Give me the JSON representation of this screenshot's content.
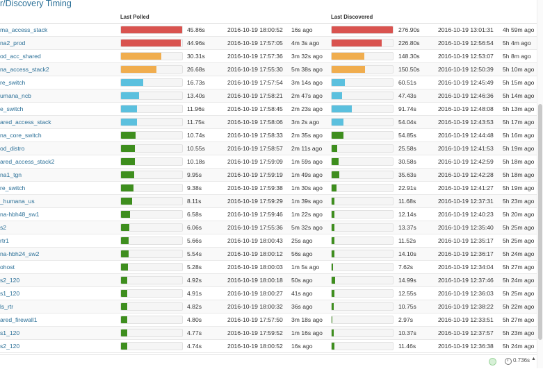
{
  "title": "r/Discovery Timing",
  "headers": {
    "last_polled": "Last Polled",
    "last_discovered": "Last Discovered"
  },
  "footer": {
    "timer": "0.736s",
    "timer_caret": "▲"
  },
  "colors": {
    "red": "#d9534f",
    "orange": "#f0ad4e",
    "blue": "#5bc0de",
    "green": "#3e8e1e"
  },
  "rows": [
    {
      "name": "ma_access_stack",
      "poll_value": "45.86s",
      "poll_pct": 1.0,
      "poll_color": "red",
      "poll_date": "2016-10-19 18:00:52",
      "poll_ago": "16s ago",
      "disc_value": "276.90s",
      "disc_pct": 1.0,
      "disc_color": "red",
      "disc_date": "2016-10-19 13:01:31",
      "disc_ago": "4h 59m ago"
    },
    {
      "name": "na2_prod",
      "poll_value": "44.96s",
      "poll_pct": 0.98,
      "poll_color": "red",
      "poll_date": "2016-10-19 17:57:05",
      "poll_ago": "4m 3s ago",
      "disc_value": "226.80s",
      "disc_pct": 0.82,
      "disc_color": "red",
      "disc_date": "2016-10-19 12:56:54",
      "disc_ago": "5h 4m ago"
    },
    {
      "name": "od_acc_shared",
      "poll_value": "30.31s",
      "poll_pct": 0.66,
      "poll_color": "orange",
      "poll_date": "2016-10-19 17:57:36",
      "poll_ago": "3m 32s ago",
      "disc_value": "148.30s",
      "disc_pct": 0.535,
      "disc_color": "orange",
      "disc_date": "2016-10-19 12:53:07",
      "disc_ago": "5h 8m ago"
    },
    {
      "name": "na_access_stack2",
      "poll_value": "26.68s",
      "poll_pct": 0.58,
      "poll_color": "orange",
      "poll_date": "2016-10-19 17:55:30",
      "poll_ago": "5m 38s ago",
      "disc_value": "150.50s",
      "disc_pct": 0.543,
      "disc_color": "orange",
      "disc_date": "2016-10-19 12:50:39",
      "disc_ago": "5h 10m ago"
    },
    {
      "name": "re_switch",
      "poll_value": "16.73s",
      "poll_pct": 0.365,
      "poll_color": "blue",
      "poll_date": "2016-10-19 17:57:54",
      "poll_ago": "3m 14s ago",
      "disc_value": "60.51s",
      "disc_pct": 0.219,
      "disc_color": "blue",
      "disc_date": "2016-10-19 12:45:49",
      "disc_ago": "5h 15m ago"
    },
    {
      "name": "umana_ncb",
      "poll_value": "13.40s",
      "poll_pct": 0.292,
      "poll_color": "blue",
      "poll_date": "2016-10-19 17:58:21",
      "poll_ago": "2m 47s ago",
      "disc_value": "47.43s",
      "disc_pct": 0.171,
      "disc_color": "blue",
      "disc_date": "2016-10-19 12:46:36",
      "disc_ago": "5h 14m ago"
    },
    {
      "name": "e_switch",
      "poll_value": "11.96s",
      "poll_pct": 0.261,
      "poll_color": "blue",
      "poll_date": "2016-10-19 17:58:45",
      "poll_ago": "2m 23s ago",
      "disc_value": "91.74s",
      "disc_pct": 0.331,
      "disc_color": "blue",
      "disc_date": "2016-10-19 12:48:08",
      "disc_ago": "5h 13m ago"
    },
    {
      "name": "ared_access_stack",
      "poll_value": "11.75s",
      "poll_pct": 0.256,
      "poll_color": "blue",
      "poll_date": "2016-10-19 17:58:06",
      "poll_ago": "3m 2s ago",
      "disc_value": "54.04s",
      "disc_pct": 0.195,
      "disc_color": "blue",
      "disc_date": "2016-10-19 12:43:53",
      "disc_ago": "5h 17m ago"
    },
    {
      "name": "na_core_switch",
      "poll_value": "10.74s",
      "poll_pct": 0.234,
      "poll_color": "green",
      "poll_date": "2016-10-19 17:58:33",
      "poll_ago": "2m 35s ago",
      "disc_value": "54.85s",
      "disc_pct": 0.198,
      "disc_color": "green",
      "disc_date": "2016-10-19 12:44:48",
      "disc_ago": "5h 16m ago"
    },
    {
      "name": "od_distro",
      "poll_value": "10.55s",
      "poll_pct": 0.23,
      "poll_color": "green",
      "poll_date": "2016-10-19 17:58:57",
      "poll_ago": "2m 11s ago",
      "disc_value": "25.58s",
      "disc_pct": 0.092,
      "disc_color": "green",
      "disc_date": "2016-10-19 12:41:53",
      "disc_ago": "5h 19m ago"
    },
    {
      "name": "ared_access_stack2",
      "poll_value": "10.18s",
      "poll_pct": 0.222,
      "poll_color": "green",
      "poll_date": "2016-10-19 17:59:09",
      "poll_ago": "1m 59s ago",
      "disc_value": "30.58s",
      "disc_pct": 0.11,
      "disc_color": "green",
      "disc_date": "2016-10-19 12:42:59",
      "disc_ago": "5h 18m ago"
    },
    {
      "name": "na1_tgn",
      "poll_value": "9.95s",
      "poll_pct": 0.217,
      "poll_color": "green",
      "poll_date": "2016-10-19 17:59:19",
      "poll_ago": "1m 49s ago",
      "disc_value": "35.63s",
      "disc_pct": 0.129,
      "disc_color": "green",
      "disc_date": "2016-10-19 12:42:28",
      "disc_ago": "5h 18m ago"
    },
    {
      "name": "re_switch",
      "poll_value": "9.38s",
      "poll_pct": 0.205,
      "poll_color": "green",
      "poll_date": "2016-10-19 17:59:38",
      "poll_ago": "1m 30s ago",
      "disc_value": "22.91s",
      "disc_pct": 0.083,
      "disc_color": "green",
      "disc_date": "2016-10-19 12:41:27",
      "disc_ago": "5h 19m ago"
    },
    {
      "name": "_humana_us",
      "poll_value": "8.11s",
      "poll_pct": 0.177,
      "poll_color": "green",
      "poll_date": "2016-10-19 17:59:29",
      "poll_ago": "1m 39s ago",
      "disc_value": "11.68s",
      "disc_pct": 0.042,
      "disc_color": "green",
      "disc_date": "2016-10-19 12:37:31",
      "disc_ago": "5h 23m ago"
    },
    {
      "name": "na-hbh48_sw1",
      "poll_value": "6.58s",
      "poll_pct": 0.143,
      "poll_color": "green",
      "poll_date": "2016-10-19 17:59:46",
      "poll_ago": "1m 22s ago",
      "disc_value": "12.14s",
      "disc_pct": 0.044,
      "disc_color": "green",
      "disc_date": "2016-10-19 12:40:23",
      "disc_ago": "5h 20m ago"
    },
    {
      "name": "s2",
      "poll_value": "6.06s",
      "poll_pct": 0.132,
      "poll_color": "green",
      "poll_date": "2016-10-19 17:55:36",
      "poll_ago": "5m 32s ago",
      "disc_value": "13.37s",
      "disc_pct": 0.048,
      "disc_color": "green",
      "disc_date": "2016-10-19 12:35:40",
      "disc_ago": "5h 25m ago"
    },
    {
      "name": "rtr1",
      "poll_value": "5.66s",
      "poll_pct": 0.123,
      "poll_color": "green",
      "poll_date": "2016-10-19 18:00:43",
      "poll_ago": "25s ago",
      "disc_value": "11.52s",
      "disc_pct": 0.042,
      "disc_color": "green",
      "disc_date": "2016-10-19 12:35:17",
      "disc_ago": "5h 25m ago"
    },
    {
      "name": "na-hbh24_sw2",
      "poll_value": "5.54s",
      "poll_pct": 0.121,
      "poll_color": "green",
      "poll_date": "2016-10-19 18:00:12",
      "poll_ago": "56s ago",
      "disc_value": "14.10s",
      "disc_pct": 0.051,
      "disc_color": "green",
      "disc_date": "2016-10-19 12:36:17",
      "disc_ago": "5h 24m ago"
    },
    {
      "name": "ohost",
      "poll_value": "5.28s",
      "poll_pct": 0.115,
      "poll_color": "green",
      "poll_date": "2016-10-19 18:00:03",
      "poll_ago": "1m 5s ago",
      "disc_value": "7.62s",
      "disc_pct": 0.028,
      "disc_color": "green",
      "disc_date": "2016-10-19 12:34:04",
      "disc_ago": "5h 27m ago"
    },
    {
      "name": "s2_120",
      "poll_value": "4.92s",
      "poll_pct": 0.107,
      "poll_color": "green",
      "poll_date": "2016-10-19 18:00:18",
      "poll_ago": "50s ago",
      "disc_value": "14.99s",
      "disc_pct": 0.054,
      "disc_color": "green",
      "disc_date": "2016-10-19 12:37:46",
      "disc_ago": "5h 24m ago"
    },
    {
      "name": "s1_120",
      "poll_value": "4.91s",
      "poll_pct": 0.107,
      "poll_color": "green",
      "poll_date": "2016-10-19 18:00:27",
      "poll_ago": "41s ago",
      "disc_value": "12.55s",
      "disc_pct": 0.045,
      "disc_color": "green",
      "disc_date": "2016-10-19 12:36:03",
      "disc_ago": "5h 25m ago"
    },
    {
      "name": "ls_rtr",
      "poll_value": "4.82s",
      "poll_pct": 0.105,
      "poll_color": "green",
      "poll_date": "2016-10-19 18:00:32",
      "poll_ago": "36s ago",
      "disc_value": "10.75s",
      "disc_pct": 0.039,
      "disc_color": "green",
      "disc_date": "2016-10-19 12:38:22",
      "disc_ago": "5h 22m ago"
    },
    {
      "name": "ared_firewall1",
      "poll_value": "4.80s",
      "poll_pct": 0.105,
      "poll_color": "green",
      "poll_date": "2016-10-19 17:57:50",
      "poll_ago": "3m 18s ago",
      "disc_value": "2.97s",
      "disc_pct": 0.011,
      "disc_color": "green",
      "disc_date": "2016-10-19 12:33:51",
      "disc_ago": "5h 27m ago"
    },
    {
      "name": "s1_120",
      "poll_value": "4.77s",
      "poll_pct": 0.104,
      "poll_color": "green",
      "poll_date": "2016-10-19 17:59:52",
      "poll_ago": "1m 16s ago",
      "disc_value": "10.37s",
      "disc_pct": 0.037,
      "disc_color": "green",
      "disc_date": "2016-10-19 12:37:57",
      "disc_ago": "5h 23m ago"
    },
    {
      "name": "s2_120",
      "poll_value": "4.74s",
      "poll_pct": 0.103,
      "poll_color": "green",
      "poll_date": "2016-10-19 18:00:52",
      "poll_ago": "16s ago",
      "disc_value": "11.46s",
      "disc_pct": 0.041,
      "disc_color": "green",
      "disc_date": "2016-10-19 12:36:38",
      "disc_ago": "5h 24m ago"
    }
  ]
}
